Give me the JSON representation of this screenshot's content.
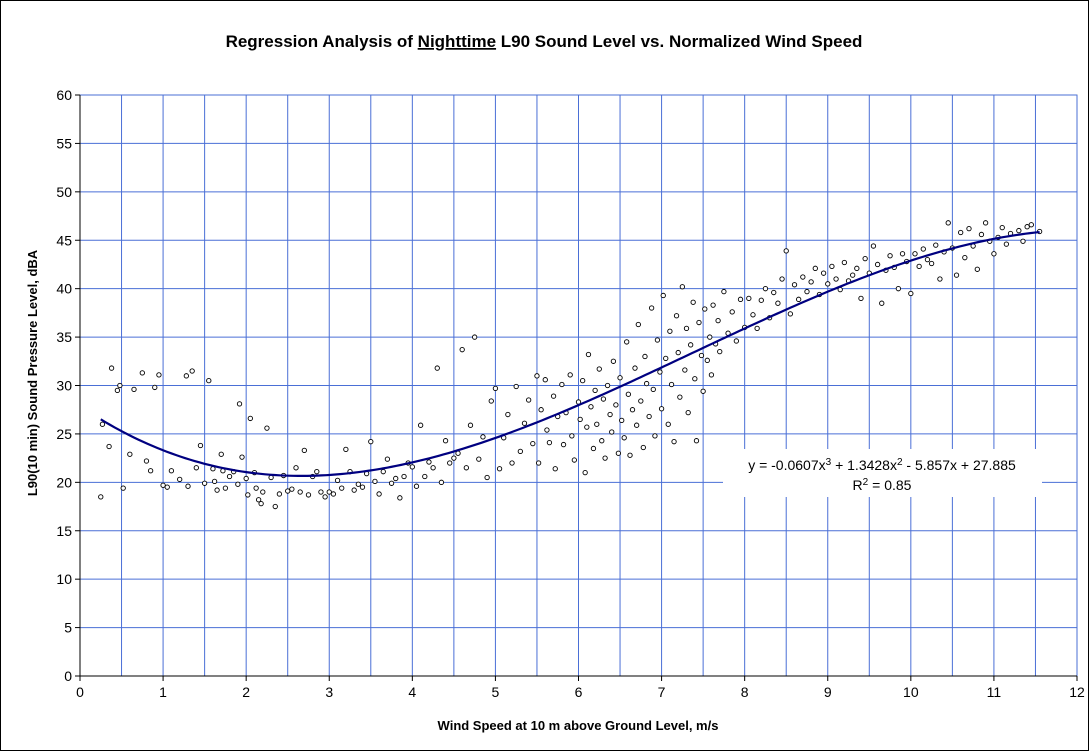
{
  "chart_data": {
    "type": "scatter",
    "title_parts": {
      "prefix": "Regression Analysis of ",
      "underlined": "Nighttime",
      "suffix": " L90 Sound Level vs. Normalized Wind Speed"
    },
    "xlabel": "Wind Speed at 10 m above Ground Level, m/s",
    "ylabel": "L90(10 min) Sound Pressure Level, dBA",
    "xlim": [
      0,
      12
    ],
    "ylim": [
      0,
      60
    ],
    "x_ticks": [
      0,
      1,
      2,
      3,
      4,
      5,
      6,
      7,
      8,
      9,
      10,
      11,
      12
    ],
    "y_ticks": [
      0,
      5,
      10,
      15,
      20,
      25,
      30,
      35,
      40,
      45,
      50,
      55,
      60
    ],
    "grid": true,
    "colors": {
      "grid": "#4a6fd6",
      "trendline": "#000080",
      "marker": "#000000"
    },
    "trendline": {
      "type": "polynomial",
      "coefficients": [
        27.885,
        -5.857,
        1.3428,
        -0.0607
      ],
      "x_range": [
        0.25,
        11.55
      ],
      "equation_parts": {
        "y_lead": "y = -0.0607x",
        "sup3": "3",
        "mid": " + 1.3428x",
        "sup2": "2",
        "tail": " - 5.857x + 27.885"
      },
      "r2_parts": {
        "lead": "R",
        "sup": "2",
        "tail": " = 0.85"
      }
    },
    "series": [
      {
        "points": [
          [
            0.25,
            18.5
          ],
          [
            0.27,
            26.0
          ],
          [
            0.35,
            23.7
          ],
          [
            0.38,
            31.8
          ],
          [
            0.45,
            29.5
          ],
          [
            0.48,
            30.0
          ],
          [
            0.52,
            19.4
          ],
          [
            0.6,
            22.9
          ],
          [
            0.65,
            29.6
          ],
          [
            0.75,
            31.3
          ],
          [
            0.8,
            22.2
          ],
          [
            0.85,
            21.2
          ],
          [
            0.9,
            29.8
          ],
          [
            0.95,
            31.1
          ],
          [
            1.0,
            19.7
          ],
          [
            1.05,
            19.5
          ],
          [
            1.1,
            21.2
          ],
          [
            1.2,
            20.3
          ],
          [
            1.28,
            31.0
          ],
          [
            1.3,
            19.6
          ],
          [
            1.35,
            31.5
          ],
          [
            1.4,
            21.5
          ],
          [
            1.45,
            23.8
          ],
          [
            1.5,
            19.9
          ],
          [
            1.55,
            30.5
          ],
          [
            1.6,
            21.4
          ],
          [
            1.62,
            20.1
          ],
          [
            1.65,
            19.2
          ],
          [
            1.7,
            22.9
          ],
          [
            1.72,
            21.2
          ],
          [
            1.75,
            19.4
          ],
          [
            1.8,
            20.6
          ],
          [
            1.85,
            21.1
          ],
          [
            1.9,
            19.8
          ],
          [
            1.92,
            28.1
          ],
          [
            1.95,
            22.6
          ],
          [
            2.0,
            20.4
          ],
          [
            2.02,
            18.7
          ],
          [
            2.05,
            26.6
          ],
          [
            2.1,
            21.0
          ],
          [
            2.12,
            19.4
          ],
          [
            2.15,
            18.2
          ],
          [
            2.18,
            17.8
          ],
          [
            2.2,
            19.0
          ],
          [
            2.25,
            25.6
          ],
          [
            2.3,
            20.5
          ],
          [
            2.35,
            17.5
          ],
          [
            2.4,
            18.8
          ],
          [
            2.45,
            20.7
          ],
          [
            2.5,
            19.1
          ],
          [
            2.55,
            19.3
          ],
          [
            2.6,
            21.5
          ],
          [
            2.65,
            19.0
          ],
          [
            2.7,
            23.3
          ],
          [
            2.75,
            18.7
          ],
          [
            2.8,
            20.6
          ],
          [
            2.85,
            21.1
          ],
          [
            2.9,
            19.0
          ],
          [
            2.95,
            18.5
          ],
          [
            3.0,
            19.0
          ],
          [
            3.05,
            18.8
          ],
          [
            3.1,
            20.2
          ],
          [
            3.15,
            19.4
          ],
          [
            3.2,
            23.4
          ],
          [
            3.25,
            21.1
          ],
          [
            3.3,
            19.2
          ],
          [
            3.35,
            19.8
          ],
          [
            3.4,
            19.5
          ],
          [
            3.45,
            20.9
          ],
          [
            3.5,
            24.2
          ],
          [
            3.55,
            20.1
          ],
          [
            3.6,
            18.8
          ],
          [
            3.65,
            21.1
          ],
          [
            3.7,
            22.4
          ],
          [
            3.75,
            19.9
          ],
          [
            3.8,
            20.4
          ],
          [
            3.85,
            18.4
          ],
          [
            3.9,
            20.6
          ],
          [
            3.95,
            22.0
          ],
          [
            4.0,
            21.6
          ],
          [
            4.05,
            19.6
          ],
          [
            4.1,
            25.9
          ],
          [
            4.15,
            20.6
          ],
          [
            4.2,
            22.1
          ],
          [
            4.25,
            21.5
          ],
          [
            4.3,
            31.8
          ],
          [
            4.35,
            20.0
          ],
          [
            4.4,
            24.3
          ],
          [
            4.45,
            22.0
          ],
          [
            4.5,
            22.5
          ],
          [
            4.55,
            23.0
          ],
          [
            4.6,
            33.7
          ],
          [
            4.65,
            21.5
          ],
          [
            4.7,
            25.9
          ],
          [
            4.75,
            35.0
          ],
          [
            4.8,
            22.4
          ],
          [
            4.85,
            24.7
          ],
          [
            4.9,
            20.5
          ],
          [
            4.95,
            28.4
          ],
          [
            5.0,
            29.7
          ],
          [
            5.05,
            21.4
          ],
          [
            5.1,
            24.6
          ],
          [
            5.15,
            27.0
          ],
          [
            5.2,
            22.0
          ],
          [
            5.25,
            29.9
          ],
          [
            5.3,
            23.2
          ],
          [
            5.35,
            26.1
          ],
          [
            5.4,
            28.5
          ],
          [
            5.45,
            24.0
          ],
          [
            5.5,
            31.0
          ],
          [
            5.52,
            22.0
          ],
          [
            5.55,
            27.5
          ],
          [
            5.6,
            30.6
          ],
          [
            5.62,
            25.4
          ],
          [
            5.65,
            24.1
          ],
          [
            5.7,
            28.9
          ],
          [
            5.72,
            21.4
          ],
          [
            5.75,
            26.8
          ],
          [
            5.8,
            30.1
          ],
          [
            5.82,
            23.9
          ],
          [
            5.85,
            27.2
          ],
          [
            5.9,
            31.1
          ],
          [
            5.92,
            24.8
          ],
          [
            5.95,
            22.3
          ],
          [
            6.0,
            28.3
          ],
          [
            6.02,
            26.5
          ],
          [
            6.05,
            30.5
          ],
          [
            6.08,
            21.0
          ],
          [
            6.1,
            25.7
          ],
          [
            6.12,
            33.2
          ],
          [
            6.15,
            27.8
          ],
          [
            6.18,
            23.5
          ],
          [
            6.2,
            29.5
          ],
          [
            6.22,
            26.0
          ],
          [
            6.25,
            31.7
          ],
          [
            6.28,
            24.3
          ],
          [
            6.3,
            28.6
          ],
          [
            6.32,
            22.5
          ],
          [
            6.35,
            30.0
          ],
          [
            6.38,
            27.0
          ],
          [
            6.4,
            25.2
          ],
          [
            6.42,
            32.5
          ],
          [
            6.45,
            28.0
          ],
          [
            6.48,
            23.0
          ],
          [
            6.5,
            30.8
          ],
          [
            6.52,
            26.4
          ],
          [
            6.55,
            24.6
          ],
          [
            6.58,
            34.5
          ],
          [
            6.6,
            29.1
          ],
          [
            6.62,
            22.8
          ],
          [
            6.65,
            27.5
          ],
          [
            6.68,
            31.8
          ],
          [
            6.7,
            25.9
          ],
          [
            6.72,
            36.3
          ],
          [
            6.75,
            28.4
          ],
          [
            6.78,
            23.6
          ],
          [
            6.8,
            33.0
          ],
          [
            6.82,
            30.2
          ],
          [
            6.85,
            26.8
          ],
          [
            6.88,
            38.0
          ],
          [
            6.9,
            29.6
          ],
          [
            6.92,
            24.8
          ],
          [
            6.95,
            34.7
          ],
          [
            6.98,
            31.4
          ],
          [
            7.0,
            27.6
          ],
          [
            7.02,
            39.3
          ],
          [
            7.05,
            32.8
          ],
          [
            7.08,
            26.0
          ],
          [
            7.1,
            35.6
          ],
          [
            7.12,
            30.1
          ],
          [
            7.15,
            24.2
          ],
          [
            7.18,
            37.2
          ],
          [
            7.2,
            33.4
          ],
          [
            7.22,
            28.8
          ],
          [
            7.25,
            40.2
          ],
          [
            7.28,
            31.6
          ],
          [
            7.3,
            35.9
          ],
          [
            7.32,
            27.2
          ],
          [
            7.35,
            34.2
          ],
          [
            7.38,
            38.6
          ],
          [
            7.4,
            30.7
          ],
          [
            7.42,
            24.3
          ],
          [
            7.45,
            36.5
          ],
          [
            7.48,
            33.1
          ],
          [
            7.5,
            29.4
          ],
          [
            7.52,
            37.9
          ],
          [
            7.55,
            32.6
          ],
          [
            7.58,
            35.0
          ],
          [
            7.6,
            31.1
          ],
          [
            7.62,
            38.3
          ],
          [
            7.65,
            34.3
          ],
          [
            7.68,
            36.7
          ],
          [
            7.7,
            33.5
          ],
          [
            7.75,
            39.7
          ],
          [
            7.8,
            35.4
          ],
          [
            7.85,
            37.6
          ],
          [
            7.9,
            34.6
          ],
          [
            7.95,
            38.9
          ],
          [
            8.0,
            36.0
          ],
          [
            8.05,
            39.0
          ],
          [
            8.1,
            37.3
          ],
          [
            8.15,
            35.9
          ],
          [
            8.2,
            38.8
          ],
          [
            8.25,
            40.0
          ],
          [
            8.3,
            37.0
          ],
          [
            8.35,
            39.6
          ],
          [
            8.4,
            38.5
          ],
          [
            8.45,
            41.0
          ],
          [
            8.5,
            43.9
          ],
          [
            8.55,
            37.4
          ],
          [
            8.6,
            40.4
          ],
          [
            8.65,
            38.9
          ],
          [
            8.7,
            41.2
          ],
          [
            8.75,
            39.7
          ],
          [
            8.8,
            40.7
          ],
          [
            8.85,
            42.1
          ],
          [
            8.9,
            39.4
          ],
          [
            8.95,
            41.6
          ],
          [
            9.0,
            40.5
          ],
          [
            9.05,
            42.3
          ],
          [
            9.1,
            41.0
          ],
          [
            9.15,
            39.9
          ],
          [
            9.2,
            42.7
          ],
          [
            9.25,
            40.8
          ],
          [
            9.3,
            41.4
          ],
          [
            9.35,
            42.1
          ],
          [
            9.4,
            39.0
          ],
          [
            9.45,
            43.1
          ],
          [
            9.5,
            41.6
          ],
          [
            9.55,
            44.4
          ],
          [
            9.6,
            42.5
          ],
          [
            9.65,
            38.5
          ],
          [
            9.7,
            41.9
          ],
          [
            9.75,
            43.4
          ],
          [
            9.8,
            42.2
          ],
          [
            9.85,
            40.0
          ],
          [
            9.9,
            43.6
          ],
          [
            9.95,
            42.8
          ],
          [
            10.0,
            39.5
          ],
          [
            10.05,
            43.6
          ],
          [
            10.1,
            42.3
          ],
          [
            10.15,
            44.1
          ],
          [
            10.2,
            43.0
          ],
          [
            10.25,
            42.6
          ],
          [
            10.3,
            44.5
          ],
          [
            10.35,
            41.0
          ],
          [
            10.4,
            43.8
          ],
          [
            10.45,
            46.8
          ],
          [
            10.5,
            44.2
          ],
          [
            10.55,
            41.4
          ],
          [
            10.6,
            45.8
          ],
          [
            10.65,
            43.2
          ],
          [
            10.7,
            46.2
          ],
          [
            10.75,
            44.4
          ],
          [
            10.8,
            42.0
          ],
          [
            10.85,
            45.6
          ],
          [
            10.9,
            46.8
          ],
          [
            10.95,
            44.9
          ],
          [
            11.0,
            43.6
          ],
          [
            11.05,
            45.3
          ],
          [
            11.1,
            46.3
          ],
          [
            11.15,
            44.6
          ],
          [
            11.2,
            45.7
          ],
          [
            11.3,
            46.0
          ],
          [
            11.35,
            44.9
          ],
          [
            11.4,
            46.4
          ],
          [
            11.45,
            46.6
          ],
          [
            11.55,
            45.9
          ]
        ]
      }
    ]
  }
}
